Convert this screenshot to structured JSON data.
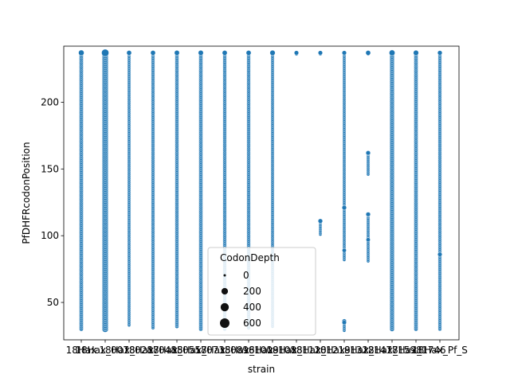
{
  "chart_data": {
    "type": "scatter",
    "title": "",
    "xlabel": "strain",
    "ylabel": "PfDHFRcodonPosition",
    "ylim": [
      22,
      242
    ],
    "yticks": [
      50,
      100,
      150,
      200
    ],
    "point_color": "#1f77b4",
    "categories": [
      "18Hax",
      "18Hax_0078",
      "18Hax_0287",
      "18Hax_0485",
      "18Hax_0557",
      "18Hax_0735",
      "18Hax_0896",
      "18Hax_1009",
      "18Hax_1088",
      "18Hax_1120",
      "18Hax_1219",
      "18Hax_1322",
      "18Hax_1477",
      "18Hax_1598",
      "18Hax_1746",
      "18Hax_Pf_S"
    ],
    "size_legend": {
      "title": "CodonDepth",
      "entries": [
        {
          "label": "0",
          "value": 0
        },
        {
          "label": "200",
          "value": 200
        },
        {
          "label": "400",
          "value": 400
        },
        {
          "label": "600",
          "value": 600
        }
      ]
    },
    "series": [
      {
        "category": "18Hax",
        "ranges": [
          [
            30,
            237
          ]
        ],
        "depth": 120,
        "top_depth": 300
      },
      {
        "category": "18Hax_0078",
        "ranges": [
          [
            30,
            237
          ]
        ],
        "depth": 420,
        "top_depth": 620
      },
      {
        "category": "18Hax_0287",
        "ranges": [
          [
            33,
            237
          ]
        ],
        "depth": 60,
        "top_depth": 200
      },
      {
        "category": "18Hax_0485",
        "ranges": [
          [
            31,
            237
          ]
        ],
        "depth": 80,
        "top_depth": 200
      },
      {
        "category": "18Hax_0557",
        "ranges": [
          [
            32,
            237
          ]
        ],
        "depth": 100,
        "top_depth": 220
      },
      {
        "category": "18Hax_0735",
        "ranges": [
          [
            30,
            237
          ]
        ],
        "depth": 110,
        "top_depth": 230
      },
      {
        "category": "18Hax_0896",
        "ranges": [
          [
            30,
            237
          ]
        ],
        "depth": 90,
        "top_depth": 210
      },
      {
        "category": "18Hax_1009",
        "ranges": [
          [
            31,
            237
          ]
        ],
        "depth": 90,
        "top_depth": 210
      },
      {
        "category": "18Hax_1088",
        "ranges": [
          [
            32,
            237
          ]
        ],
        "depth": 60,
        "top_depth": 250
      },
      {
        "category": "18Hax_1120",
        "ranges": [
          [
            236,
            237
          ]
        ],
        "depth": 60,
        "top_depth": 150
      },
      {
        "category": "18Hax_1219",
        "ranges": [
          [
            101,
            111
          ],
          [
            236,
            237
          ]
        ],
        "depth": 50,
        "top_depth": 150
      },
      {
        "category": "18Hax_1322",
        "ranges": [
          [
            29,
            36
          ],
          [
            82,
            237
          ]
        ],
        "depth": 60,
        "top_depth": 150
      },
      {
        "category": "18Hax_1477",
        "ranges": [
          [
            81,
            116
          ],
          [
            146,
            162
          ],
          [
            236,
            237
          ]
        ],
        "depth": 60,
        "top_depth": 200
      },
      {
        "category": "18Hax_1598",
        "ranges": [
          [
            30,
            237
          ]
        ],
        "depth": 180,
        "top_depth": 330
      },
      {
        "category": "18Hax_1746",
        "ranges": [
          [
            30,
            237
          ]
        ],
        "depth": 120,
        "top_depth": 250
      },
      {
        "category": "18Hax_Pf_S",
        "ranges": [
          [
            30,
            237
          ]
        ],
        "depth": 80,
        "top_depth": 170
      }
    ],
    "highlights": [
      {
        "category": "18Hax_1219",
        "y": 111,
        "depth": 160
      },
      {
        "category": "18Hax_1322",
        "y": 121,
        "depth": 160
      },
      {
        "category": "18Hax_1322",
        "y": 89,
        "depth": 120
      },
      {
        "category": "18Hax_1322",
        "y": 35,
        "depth": 140
      },
      {
        "category": "18Hax_1477",
        "y": 162,
        "depth": 150
      },
      {
        "category": "18Hax_1477",
        "y": 116,
        "depth": 150
      },
      {
        "category": "18Hax_1477",
        "y": 97,
        "depth": 120
      },
      {
        "category": "18Hax_Pf_S",
        "y": 86,
        "depth": 150
      }
    ]
  }
}
